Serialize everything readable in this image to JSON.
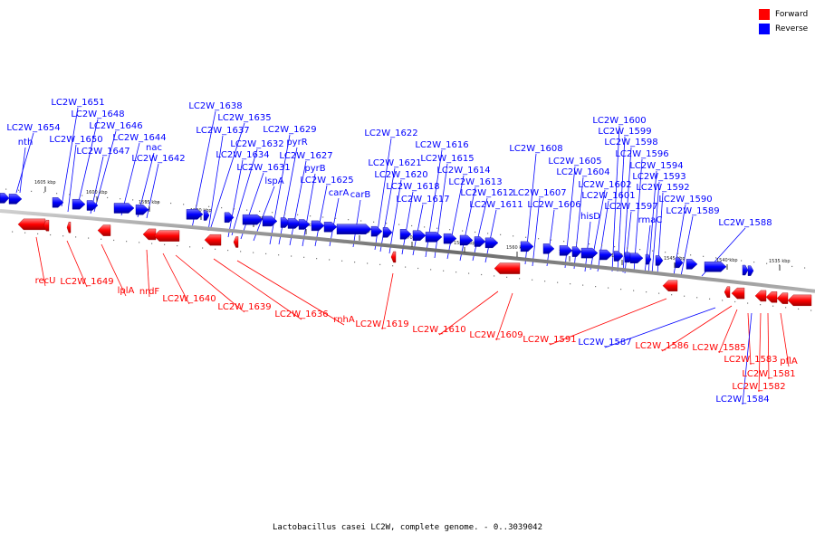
{
  "legend": [
    {
      "label": "Forward",
      "color": "#ff0000"
    },
    {
      "label": "Reverse",
      "color": "#0000ff"
    }
  ],
  "caption": "Lactobacillus casei LC2W, complete genome. - 0..3039042",
  "colors": {
    "forward": "#ff0000",
    "reverse": "#0000ff",
    "backbone": "#7f7f7f"
  },
  "ticks": [
    "1605 kbp",
    "1600 kbp",
    "1595 kbp",
    "1590 kbp",
    "1585 kbp",
    "1580 kbp",
    "1575 kbp",
    "1570 kbp",
    "1565 kbp",
    "1560 kbp",
    "1555 kbp",
    "1550 kbp",
    "1545 kbp",
    "1540 kbp",
    "1535 kbp"
  ],
  "forward_labels": [
    "recU",
    "LC2W_1649",
    "lplA",
    "nrdF",
    "LC2W_1640",
    "LC2W_1639",
    "LC2W_1636",
    "rnhA",
    "LC2W_1619",
    "LC2W_1610",
    "LC2W_1609",
    "LC2W_1591",
    "LC2W_1586",
    "LC2W_1585",
    "LC2W_1583",
    "LC2W_1581",
    "LC2W_1582",
    "pflA"
  ],
  "forward_mixed_labels": [
    "LC2W_1587",
    "LC2W_1584"
  ],
  "reverse_labels": [
    "LC2W_1654",
    "nth",
    "LC2W_1651",
    "LC2W_1648",
    "LC2W_1650",
    "LC2W_1646",
    "LC2W_1647",
    "LC2W_1644",
    "nac",
    "LC2W_1642",
    "LC2W_1638",
    "LC2W_1635",
    "LC2W_1637",
    "LC2W_1632",
    "LC2W_1634",
    "LC2W_1631",
    "lspA",
    "LC2W_1629",
    "pyrR",
    "LC2W_1627",
    "pyrB",
    "LC2W_1625",
    "carA",
    "carB",
    "LC2W_1622",
    "LC2W_1621",
    "LC2W_1620",
    "LC2W_1618",
    "LC2W_1617",
    "LC2W_1616",
    "LC2W_1615",
    "LC2W_1614",
    "LC2W_1613",
    "LC2W_1612",
    "LC2W_1611",
    "LC2W_1608",
    "LC2W_1607",
    "LC2W_1606",
    "LC2W_1605",
    "LC2W_1604",
    "LC2W_1602",
    "LC2W_1601",
    "hisD",
    "LC2W_1600",
    "LC2W_1599",
    "LC2W_1598",
    "LC2W_1596",
    "LC2W_1597",
    "rmaC",
    "LC2W_1594",
    "LC2W_1593",
    "LC2W_1592",
    "LC2W_1590",
    "LC2W_1589",
    "LC2W_1588"
  ]
}
